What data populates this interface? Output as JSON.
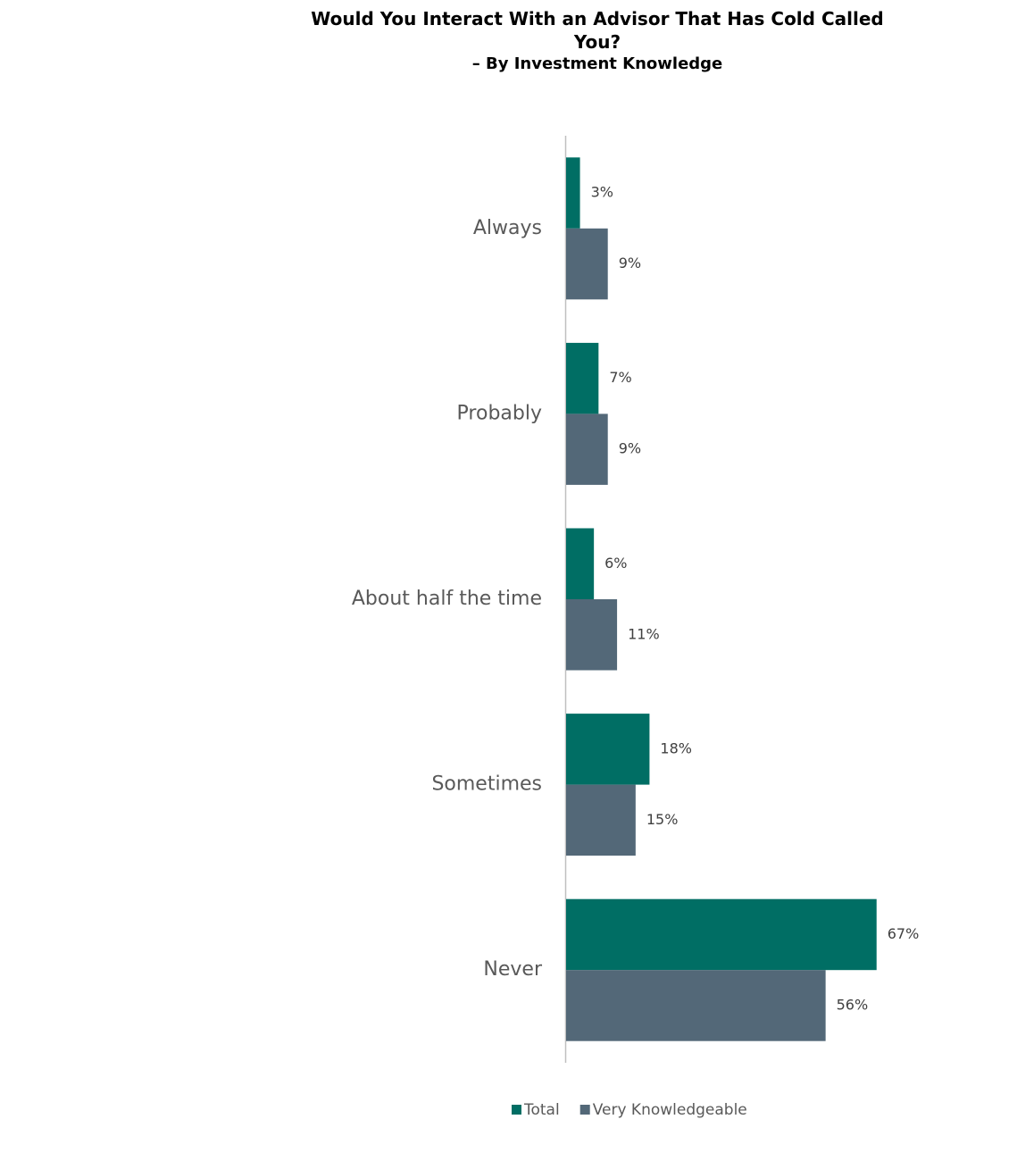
{
  "chart_data": {
    "type": "bar",
    "orientation": "horizontal",
    "title": "Would You Interact With an Advisor That Has Cold Called You?",
    "subtitle": "– By Investment Knowledge",
    "categories": [
      "Always",
      "Probably",
      "About half the time",
      "Sometimes",
      "Never"
    ],
    "series": [
      {
        "name": "Total",
        "color": "#006e64",
        "values": [
          3,
          7,
          6,
          18,
          67
        ],
        "value_labels": [
          "3%",
          "7%",
          "6%",
          "18%",
          "67%"
        ]
      },
      {
        "name": "Very Knowledgeable",
        "color": "#536878",
        "values": [
          9,
          9,
          11,
          15,
          56
        ],
        "value_labels": [
          "9%",
          "9%",
          "11%",
          "15%",
          "56%"
        ]
      }
    ],
    "legend": "bottom"
  }
}
